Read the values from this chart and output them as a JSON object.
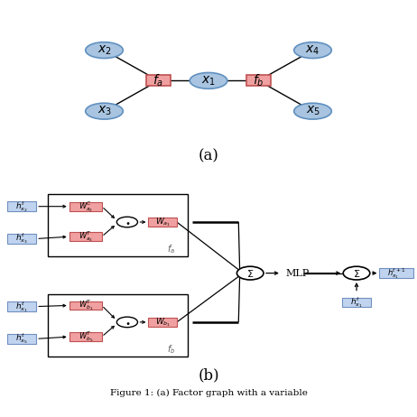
{
  "fig_width": 4.62,
  "fig_height": 4.62,
  "dpi": 100,
  "bg_color": "#ffffff",
  "node_blue_fc": "#a8c4e0",
  "node_blue_ec": "#6090c0",
  "factor_red_fc": "#f0a0a0",
  "factor_red_ec": "#c05050",
  "box_blue_fc": "#c0d4f0",
  "box_blue_ec": "#7090c0",
  "caption_a": "(a)",
  "caption_b": "(b)",
  "fig_caption": "Figure 1: (a) Factor graph with a variable"
}
